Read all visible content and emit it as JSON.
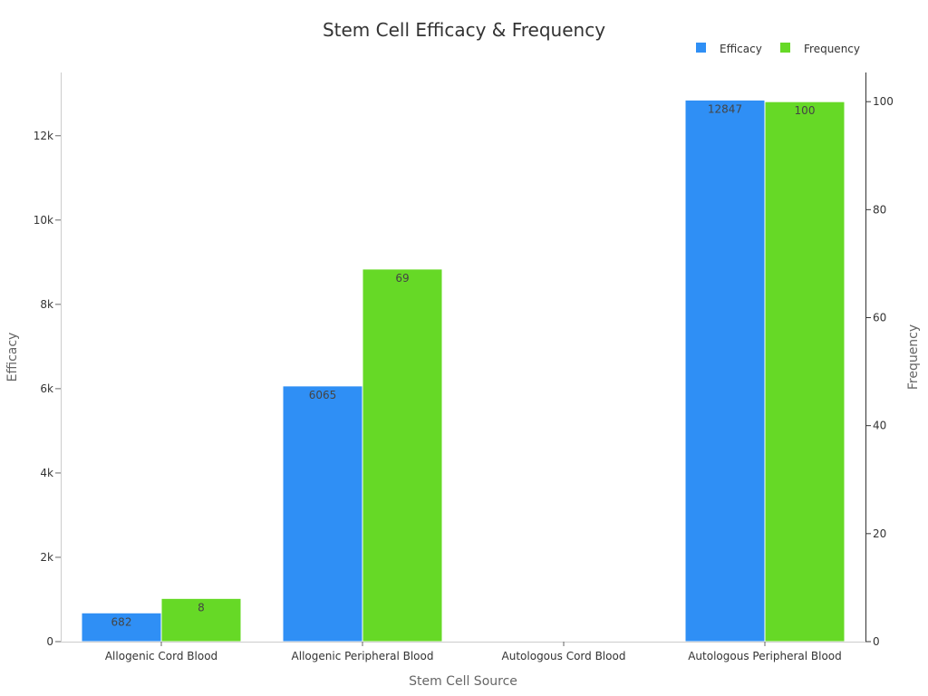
{
  "chart_data": {
    "type": "bar",
    "title": "Stem Cell Efficacy & Frequency",
    "xlabel": "Stem Cell Source",
    "ylabel": "Efficacy",
    "y2label": "Frequency",
    "categories": [
      "Allogenic Cord Blood",
      "Allogenic Peripheral Blood",
      "Autologous Cord Blood",
      "Autologous Peripheral Blood"
    ],
    "series": [
      {
        "name": "Efficacy",
        "axis": "left",
        "color": "#2f8ff5",
        "values": [
          682,
          6065,
          0,
          12847
        ],
        "labels": [
          "682",
          "6065",
          "",
          "12847"
        ]
      },
      {
        "name": "Frequency",
        "axis": "right",
        "color": "#66d926",
        "values": [
          8,
          69,
          0,
          100
        ],
        "labels": [
          "8",
          "69",
          "",
          "100"
        ]
      }
    ],
    "ylim": [
      0,
      13500
    ],
    "y2lim": [
      0,
      105.4
    ],
    "yticks": [
      0,
      2000,
      4000,
      6000,
      8000,
      10000,
      12000
    ],
    "ytick_labels": [
      "0",
      "2k",
      "4k",
      "6k",
      "8k",
      "10k",
      "12k"
    ],
    "y2ticks": [
      0,
      20,
      40,
      60,
      80,
      100
    ],
    "y2tick_labels": [
      "0",
      "20",
      "40",
      "60",
      "80",
      "100"
    ],
    "grid": false,
    "legend": {
      "position": "top-right",
      "entries": [
        "Efficacy",
        "Frequency"
      ]
    }
  }
}
